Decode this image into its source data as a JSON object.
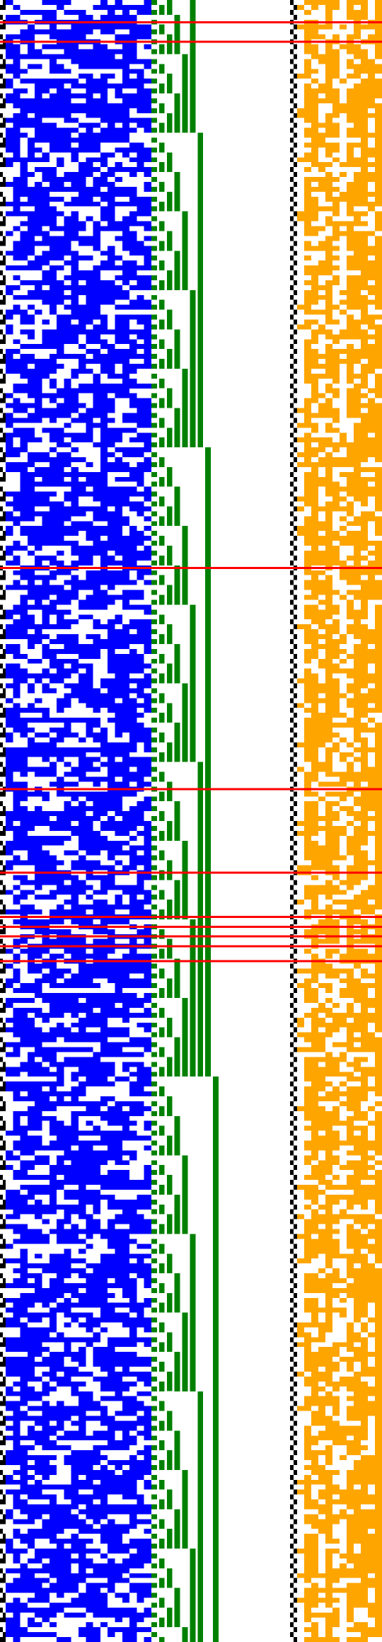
{
  "figure": {
    "rows": 334,
    "colors": {
      "background": "#ffffff",
      "counter": "#000000",
      "random_bits": "#0000ff",
      "carry_bits": "#008000",
      "orange_bits": "#ffa500",
      "marker_lines": "#ff0000"
    }
  },
  "columns": {
    "counter_bits": 2,
    "random_bits": 20,
    "counter_bits_2": 18,
    "orange_bits": 12
  },
  "regions": [
    {
      "name": "counter-column-left",
      "color_key": "counter"
    },
    {
      "name": "random-bit-field",
      "color_key": "random_bits"
    },
    {
      "name": "binary-counter-field",
      "color_key": "carry_bits"
    },
    {
      "name": "counter-column-right",
      "color_key": "counter"
    },
    {
      "name": "orange-bit-field",
      "color_key": "orange_bits"
    }
  ],
  "markers": {
    "row_indices": [
      4,
      8,
      115,
      160,
      177,
      186,
      188,
      190,
      192,
      195
    ]
  }
}
